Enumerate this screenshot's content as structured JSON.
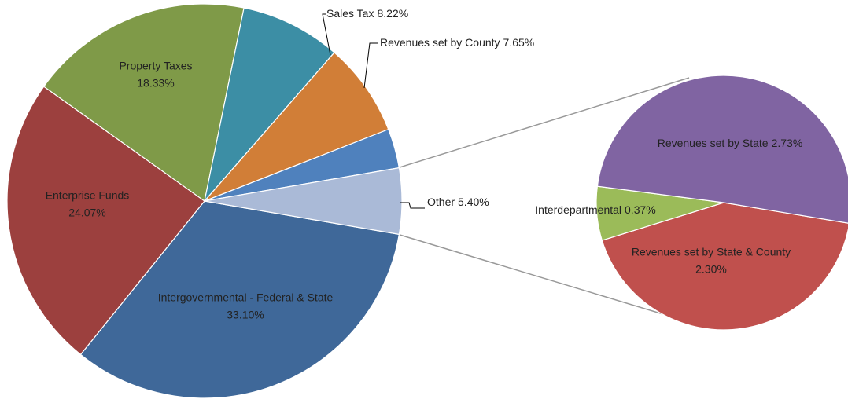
{
  "chart_data": [
    {
      "type": "pie",
      "categories": [
        "Intergovernmental - Federal & State",
        "Enterprise Funds",
        "Property Taxes",
        "Sales Tax",
        "Revenues set by County",
        null,
        "Other"
      ],
      "values": [
        33.1,
        24.07,
        18.33,
        8.22,
        7.65,
        3.23,
        5.4
      ],
      "value_labels": [
        "33.10%",
        "24.07%",
        "18.33%",
        "8.22%",
        "7.65%",
        null,
        "5.40%"
      ],
      "colors": [
        "#3f6899",
        "#9c403e",
        "#7f9a48",
        "#3c8ea5",
        "#d17e37",
        "#4f81bd",
        "#aabad7"
      ]
    },
    {
      "type": "pie",
      "categories": [
        "Revenues set by State & County",
        "Interdepartmental",
        "Revenues set by State"
      ],
      "values": [
        2.3,
        0.37,
        2.73
      ],
      "value_labels": [
        "2.30%",
        "0.37%",
        "2.73%"
      ],
      "colors": [
        "#c0504d",
        "#9bbb59",
        "#8064a2"
      ]
    }
  ]
}
